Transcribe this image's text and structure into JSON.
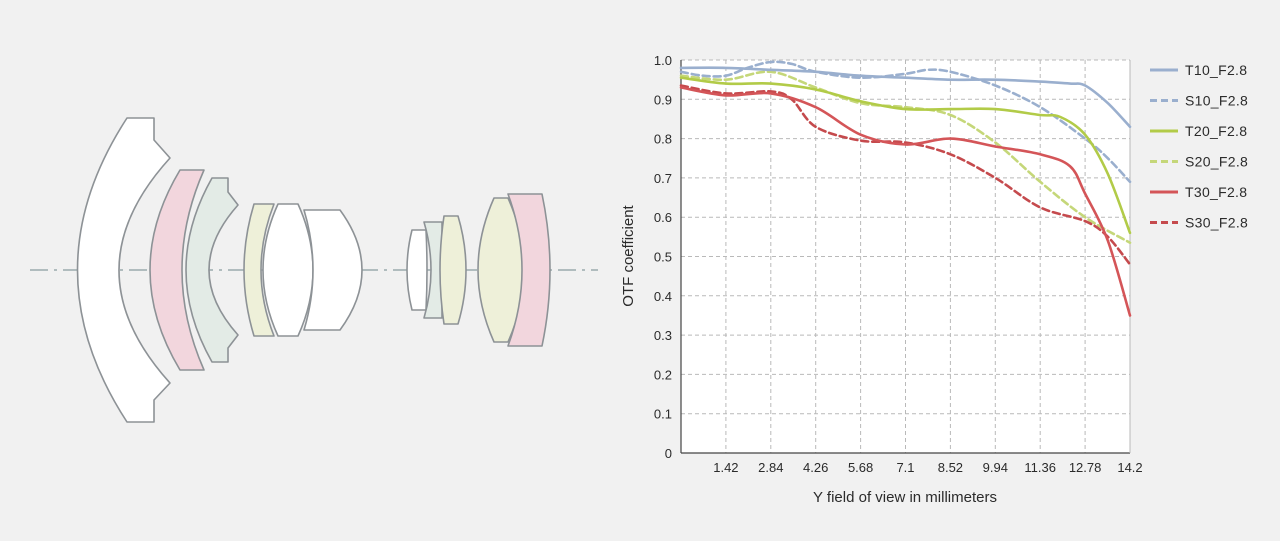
{
  "colors": {
    "background": "#f1f1f1",
    "plot_background": "#ffffff",
    "grid": "#b9b9b9",
    "lens_fill_white": "#ffffff",
    "lens_fill_pink": "#f2d6dd",
    "lens_fill_green": "#e3ebe6",
    "lens_fill_yellow": "#eef0d9",
    "lens_outline": "#8d9296",
    "optical_axis": "#9aabad"
  },
  "chart_data": {
    "type": "line",
    "title": "",
    "xlabel": "Y field of view in millimeters",
    "ylabel": "OTF coefficient",
    "xlim": [
      0,
      14.2
    ],
    "ylim": [
      0,
      1.0
    ],
    "x_ticks": [
      "1.42",
      "2.84",
      "4.26",
      "5.68",
      "7.1",
      "8.52",
      "9.94",
      "11.36",
      "12.78",
      "14.2"
    ],
    "y_ticks": [
      "0",
      "0.1",
      "0.2",
      "0.3",
      "0.4",
      "0.5",
      "0.6",
      "0.7",
      "0.8",
      "0.9",
      "1.0"
    ],
    "grid": true,
    "legend_position": "right",
    "series": [
      {
        "name": "T10_F2.8",
        "color": "#9aafce",
        "dash": "solid",
        "x": [
          0,
          1.42,
          2.84,
          4.26,
          5.68,
          7.1,
          8.52,
          9.94,
          11.36,
          12.3,
          12.78,
          13.5,
          14.2
        ],
        "y": [
          0.98,
          0.98,
          0.975,
          0.97,
          0.96,
          0.955,
          0.95,
          0.95,
          0.945,
          0.94,
          0.935,
          0.89,
          0.83
        ]
      },
      {
        "name": "S10_F2.8",
        "color": "#9aafce",
        "dash": "dashed",
        "x": [
          0,
          0.7,
          1.42,
          2.1,
          2.84,
          3.5,
          4.26,
          5.68,
          7.1,
          7.8,
          8.52,
          9.94,
          11.36,
          12.78,
          13.5,
          14.2
        ],
        "y": [
          0.97,
          0.96,
          0.96,
          0.98,
          0.995,
          0.99,
          0.97,
          0.955,
          0.965,
          0.975,
          0.97,
          0.935,
          0.88,
          0.8,
          0.75,
          0.69
        ]
      },
      {
        "name": "T20_F2.8",
        "color": "#b2cb48",
        "dash": "solid",
        "x": [
          0,
          1.42,
          2.84,
          4.26,
          5.68,
          7.1,
          8.52,
          9.94,
          11.36,
          12.0,
          12.78,
          13.5,
          14.2
        ],
        "y": [
          0.955,
          0.94,
          0.94,
          0.925,
          0.895,
          0.875,
          0.875,
          0.875,
          0.86,
          0.855,
          0.81,
          0.71,
          0.56
        ]
      },
      {
        "name": "S20_F2.8",
        "color": "#c5d779",
        "dash": "dashed",
        "x": [
          0,
          1.42,
          2.84,
          4.26,
          5.68,
          7.1,
          8.52,
          9.94,
          11.36,
          12.78,
          14.2
        ],
        "y": [
          0.96,
          0.95,
          0.97,
          0.93,
          0.89,
          0.88,
          0.86,
          0.79,
          0.69,
          0.6,
          0.535
        ]
      },
      {
        "name": "T30_F2.8",
        "color": "#d45558",
        "dash": "solid",
        "x": [
          0,
          1.42,
          2.84,
          4.26,
          5.68,
          7.1,
          8.52,
          9.94,
          11.36,
          12.3,
          12.78,
          13.5,
          14.2
        ],
        "y": [
          0.93,
          0.91,
          0.915,
          0.88,
          0.81,
          0.785,
          0.8,
          0.78,
          0.76,
          0.73,
          0.66,
          0.54,
          0.35
        ]
      },
      {
        "name": "S30_F2.8",
        "color": "#c54a4d",
        "dash": "dashed",
        "x": [
          0,
          1.42,
          2.84,
          3.5,
          4.26,
          5.68,
          7.1,
          8.52,
          9.94,
          11.36,
          12.78,
          13.5,
          14.2
        ],
        "y": [
          0.935,
          0.915,
          0.92,
          0.9,
          0.83,
          0.795,
          0.79,
          0.76,
          0.7,
          0.625,
          0.59,
          0.55,
          0.48
        ]
      }
    ]
  }
}
